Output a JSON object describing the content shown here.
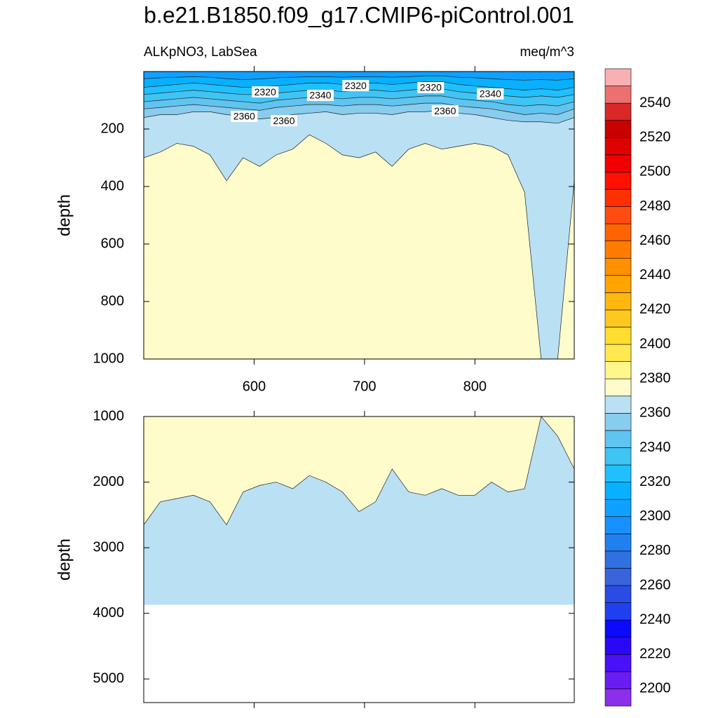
{
  "chart_data": {
    "type": "contour",
    "title": "b.e21.B1850.f09_g17.CMIP6-piControl.001",
    "colorbar": {
      "levels": [
        2200,
        2210,
        2220,
        2230,
        2240,
        2250,
        2260,
        2270,
        2280,
        2290,
        2300,
        2310,
        2320,
        2330,
        2340,
        2350,
        2360,
        2370,
        2380,
        2390,
        2400,
        2410,
        2420,
        2430,
        2440,
        2450,
        2460,
        2470,
        2480,
        2490,
        2500,
        2510,
        2520,
        2530,
        2540,
        2550
      ],
      "ticks": [
        2200,
        2220,
        2240,
        2260,
        2280,
        2300,
        2320,
        2340,
        2360,
        2380,
        2400,
        2420,
        2440,
        2460,
        2480,
        2500,
        2520,
        2540
      ],
      "colors": [
        "#8b2fe8",
        "#6a1cf2",
        "#4a10f8",
        "#2a08f5",
        "#0a0aff",
        "#2040f0",
        "#2a4ce4",
        "#3a64dc",
        "#3070e0",
        "#2080f0",
        "#1a90ff",
        "#10a0ff",
        "#08b0ff",
        "#20c0ff",
        "#40c4f4",
        "#60c4f0",
        "#88ccee",
        "#bae0f4",
        "#fffccc",
        "#fff68c",
        "#ffe850",
        "#ffdc30",
        "#ffc820",
        "#ffb810",
        "#ffa400",
        "#ff9000",
        "#ff7c00",
        "#ff6400",
        "#ff4c10",
        "#ff3000",
        "#ff1000",
        "#f00000",
        "#e00000",
        "#c80000",
        "#d82828",
        "#ec7070",
        "#f8b0b4"
      ]
    },
    "panels": [
      {
        "subtitle_left": "ALKpNO3, LabSea",
        "subtitle_right": "meq/m^3",
        "ylabel": "depth",
        "xlim": [
          500,
          890
        ],
        "xticks": [
          600,
          700,
          800
        ],
        "xtick_labels": true,
        "ylim": [
          0,
          1000
        ],
        "yticks": [
          200,
          400,
          600,
          800,
          1000
        ],
        "background": "#fffccc",
        "x": [
          500,
          515,
          530,
          545,
          560,
          575,
          590,
          605,
          620,
          635,
          650,
          665,
          680,
          695,
          710,
          725,
          740,
          755,
          770,
          785,
          800,
          815,
          830,
          845,
          860,
          875,
          890
        ],
        "contours": [
          {
            "level": 2370,
            "color": "#bae0f4",
            "values": [
              300,
              280,
              250,
              260,
              290,
              380,
              300,
              330,
              290,
              270,
              220,
              250,
              290,
              300,
              280,
              330,
              270,
              250,
              270,
              260,
              250,
              260,
              290,
              420,
              1000,
              1000,
              380
            ]
          },
          {
            "level": 2360,
            "color": "#88ccee",
            "values": [
              160,
              150,
              150,
              140,
              140,
              150,
              155,
              165,
              160,
              150,
              145,
              140,
              150,
              145,
              145,
              150,
              140,
              140,
              135,
              145,
              150,
              160,
              170,
              175,
              175,
              180,
              160
            ]
          },
          {
            "level": 2350,
            "color": "#60c4f0",
            "values": [
              130,
              125,
              120,
              115,
              120,
              125,
              130,
              135,
              125,
              120,
              115,
              115,
              120,
              115,
              115,
              120,
              115,
              110,
              110,
              120,
              125,
              130,
              140,
              150,
              145,
              150,
              130
            ]
          },
          {
            "level": 2340,
            "color": "#40c4f4",
            "values": [
              105,
              100,
              95,
              90,
              95,
              100,
              105,
              110,
              100,
              95,
              90,
              90,
              95,
              90,
              90,
              95,
              90,
              85,
              85,
              95,
              100,
              105,
              115,
              120,
              115,
              120,
              105
            ]
          },
          {
            "level": 2330,
            "color": "#20c0ff",
            "values": [
              80,
              75,
              70,
              65,
              70,
              75,
              80,
              80,
              75,
              70,
              65,
              65,
              70,
              65,
              65,
              70,
              65,
              60,
              60,
              70,
              75,
              80,
              85,
              90,
              85,
              90,
              80
            ]
          },
          {
            "level": 2320,
            "color": "#08b0ff",
            "values": [
              55,
              50,
              45,
              40,
              45,
              50,
              55,
              55,
              50,
              45,
              40,
              40,
              45,
              40,
              40,
              45,
              40,
              35,
              35,
              45,
              50,
              55,
              60,
              65,
              60,
              65,
              55
            ]
          },
          {
            "level": 2310,
            "color": "#10a0ff",
            "values": [
              25,
              22,
              20,
              18,
              20,
              25,
              28,
              26,
              22,
              20,
              18,
              18,
              20,
              18,
              18,
              20,
              18,
              15,
              15,
              20,
              22,
              25,
              28,
              30,
              28,
              30,
              25
            ]
          }
        ],
        "contour_labels": [
          {
            "level": 2320,
            "x": 610,
            "depth": 71
          },
          {
            "level": 2320,
            "x": 692,
            "depth": 49
          },
          {
            "level": 2320,
            "x": 760,
            "depth": 56
          },
          {
            "level": 2340,
            "x": 814,
            "depth": 78
          },
          {
            "level": 2340,
            "x": 660,
            "depth": 83
          },
          {
            "level": 2360,
            "x": 591,
            "depth": 156
          },
          {
            "level": 2360,
            "x": 627,
            "depth": 171
          },
          {
            "level": 2360,
            "x": 773,
            "depth": 137
          }
        ]
      },
      {
        "ylabel": "depth",
        "xlim": [
          500,
          890
        ],
        "xticks": [
          600,
          700,
          800
        ],
        "xtick_labels": false,
        "ylim": [
          1000,
          5360
        ],
        "yticks": [
          1000,
          2000,
          3000,
          4000,
          5000
        ],
        "background": "#ffffff",
        "floor": 3870,
        "floor_color": "#bae0f4",
        "x": [
          500,
          515,
          530,
          545,
          560,
          575,
          590,
          605,
          620,
          635,
          650,
          665,
          680,
          695,
          710,
          725,
          740,
          755,
          770,
          785,
          800,
          815,
          830,
          845,
          860,
          875,
          890
        ],
        "contours": [
          {
            "level": 2370,
            "color": "#fffccc",
            "values": [
              2650,
              2300,
              2250,
              2200,
              2300,
              2650,
              2150,
              2050,
              2000,
              2100,
              1900,
              2000,
              2150,
              2450,
              2300,
              1800,
              2150,
              2200,
              2100,
              2200,
              2200,
              2000,
              2150,
              2100,
              1000,
              1300,
              1800
            ]
          }
        ],
        "contour_labels": []
      }
    ]
  }
}
